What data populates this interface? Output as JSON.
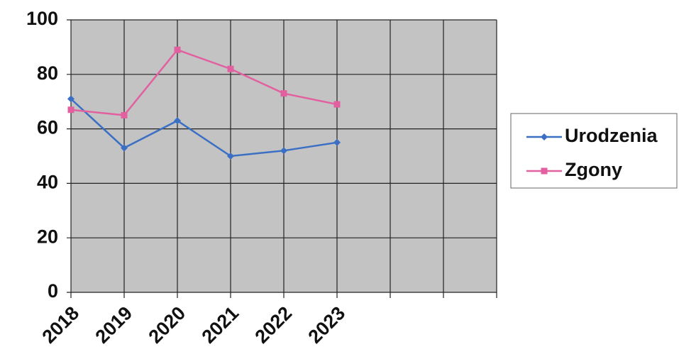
{
  "chart_data": {
    "type": "line",
    "categories": [
      "2018",
      "2019",
      "2020",
      "2021",
      "2022",
      "2023",
      null,
      null,
      null
    ],
    "series": [
      {
        "name": "Urodzenia",
        "color": "#3a6fc4",
        "marker": "diamond",
        "values": [
          71,
          53,
          63,
          50,
          52,
          55,
          null,
          null,
          null
        ]
      },
      {
        "name": "Zgony",
        "color": "#e2609f",
        "marker": "square",
        "values": [
          67,
          65,
          89,
          82,
          73,
          69,
          null,
          null,
          null
        ]
      }
    ],
    "ylim": [
      0,
      100
    ],
    "yticks": [
      0,
      20,
      40,
      60,
      80,
      100
    ],
    "grid": true,
    "legend": "right"
  }
}
